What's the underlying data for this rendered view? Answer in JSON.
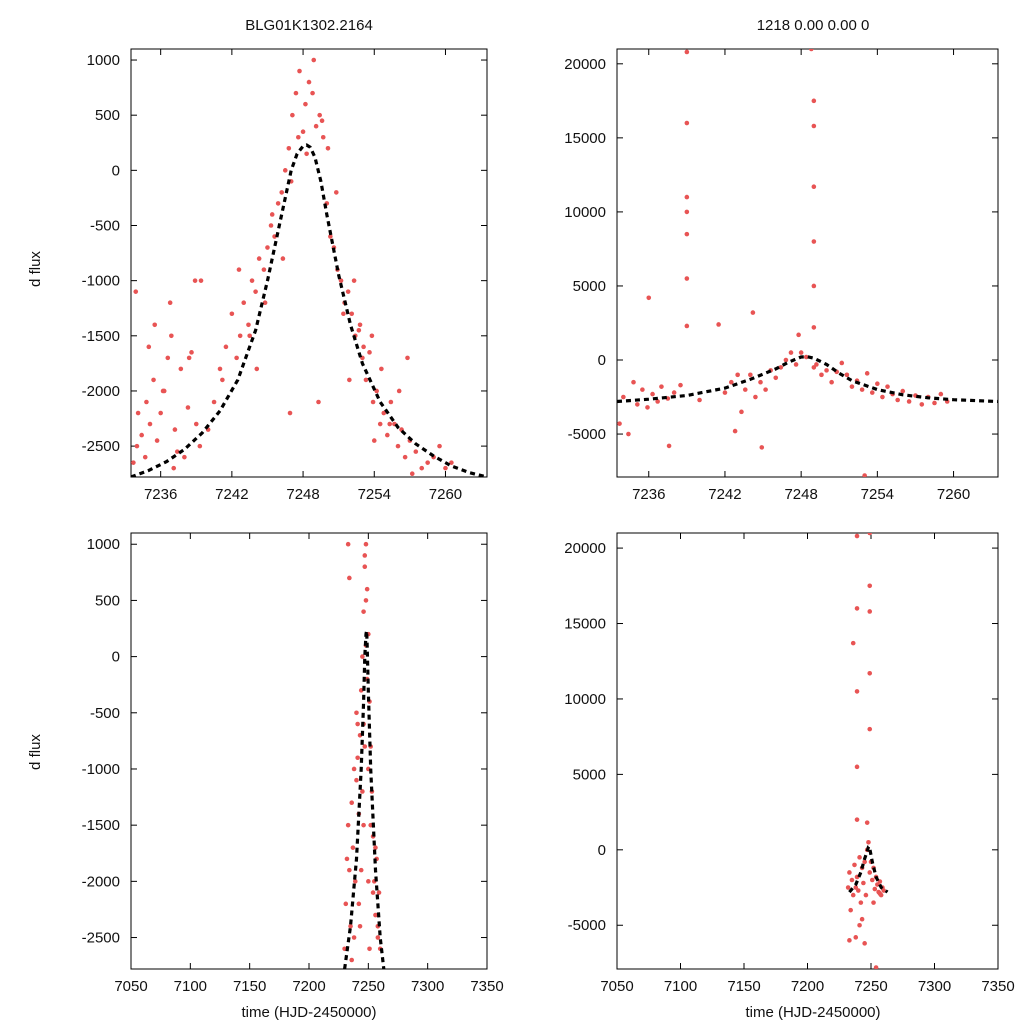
{
  "figure": {
    "left_title": "BLG01K1302.2164",
    "right_title": "1218  0.00  0.00  0",
    "ylabel": "d flux",
    "xlabel": "time (HJD-2450000)"
  },
  "colors": {
    "points": "#e85454",
    "model": "#000000"
  },
  "chart_data": [
    {
      "type": "scatter",
      "title": "BLG01K1302.2164",
      "xlabel": "",
      "ylabel": "d flux",
      "xlim": [
        7233.5,
        7263.5
      ],
      "ylim": [
        -2780,
        1100
      ],
      "xticks": [
        7236,
        7242,
        7248,
        7254,
        7260
      ],
      "yticks": [
        1000,
        500,
        0,
        -500,
        -1000,
        -1500,
        -2000,
        -2500
      ],
      "series": [
        {
          "name": "data",
          "style": "points",
          "x": [
            7233.7,
            7234.0,
            7234.1,
            7234.4,
            7234.7,
            7234.8,
            7235.1,
            7235.4,
            7235.7,
            7236.0,
            7236.3,
            7236.6,
            7236.9,
            7237.2,
            7237.4,
            7237.7,
            7238.0,
            7238.3,
            7238.6,
            7239.0,
            7239.3,
            7240.0,
            7240.5,
            7241.0,
            7241.5,
            7242.0,
            7242.4,
            7242.7,
            7243.0,
            7243.4,
            7243.7,
            7244.0,
            7244.3,
            7244.7,
            7245.0,
            7245.3,
            7245.6,
            7245.9,
            7246.2,
            7246.5,
            7246.8,
            7247.1,
            7247.4,
            7247.7,
            7248.0,
            7248.2,
            7248.5,
            7248.8,
            7249.1,
            7249.4,
            7249.7,
            7250.0,
            7250.3,
            7250.6,
            7250.9,
            7251.2,
            7251.5,
            7251.8,
            7252.1,
            7252.4,
            7252.7,
            7253.0,
            7253.3,
            7253.6,
            7253.9,
            7254.2,
            7254.5,
            7254.8,
            7255.1,
            7255.4,
            7255.7,
            7256.0,
            7256.3,
            7256.6,
            7257.0,
            7257.5,
            7258.0,
            7258.5,
            7259.0,
            7259.5,
            7260.0,
            7260.5,
            7233.9,
            7235.0,
            7236.2,
            7237.1,
            7238.4,
            7239.4,
            7241.2,
            7242.6,
            7243.5,
            7244.8,
            7245.4,
            7246.3,
            7247.0,
            7247.6,
            7248.3,
            7248.9,
            7249.6,
            7250.1,
            7250.8,
            7251.4,
            7252.3,
            7253.1,
            7253.8,
            7254.6,
            7255.3,
            7256.1,
            7257.2,
            7235.5,
            7236.8,
            7238.9,
            7244.1,
            7246.9,
            7249.3,
            7251.9,
            7254.0,
            7256.8,
            7252.8
          ],
          "y": [
            -2650,
            -2500,
            -2200,
            -2400,
            -2600,
            -2100,
            -2300,
            -1900,
            -2450,
            -2200,
            -2000,
            -1700,
            -1500,
            -2350,
            -2550,
            -1800,
            -2600,
            -2150,
            -1650,
            -2300,
            -2500,
            -2350,
            -2100,
            -1800,
            -1600,
            -1300,
            -1700,
            -1500,
            -1200,
            -1400,
            -1000,
            -1100,
            -800,
            -900,
            -700,
            -500,
            -600,
            -300,
            -200,
            0,
            200,
            500,
            700,
            900,
            350,
            600,
            800,
            700,
            400,
            500,
            300,
            -300,
            -600,
            -700,
            -900,
            -1000,
            -1200,
            -1100,
            -1300,
            -1500,
            -1450,
            -1700,
            -1900,
            -1650,
            -2100,
            -2000,
            -2300,
            -2200,
            -2400,
            -2100,
            -2300,
            -2500,
            -2350,
            -2600,
            -2450,
            -2550,
            -2700,
            -2650,
            -2600,
            -2500,
            -2700,
            -2650,
            -1100,
            -1600,
            -2000,
            -2700,
            -1700,
            -1000,
            -1900,
            -900,
            -1500,
            -1200,
            -400,
            -800,
            -100,
            300,
            150,
            1000,
            450,
            200,
            -200,
            -1300,
            -1000,
            -1600,
            -1500,
            -1800,
            -2300,
            -2000,
            -2750,
            -1400,
            -1200,
            -1000,
            -1800,
            -2200,
            -2100,
            -1900,
            -2450,
            -1700,
            -1400
          ],
          "color": "#e85454"
        },
        {
          "name": "model",
          "style": "dashed-line",
          "x": [
            7233.5,
            7235,
            7236.5,
            7238,
            7239.5,
            7241,
            7242.5,
            7244,
            7245,
            7246,
            7247,
            7247.5,
            7248,
            7248.3,
            7248.6,
            7249,
            7249.5,
            7250,
            7251,
            7252,
            7253,
            7254.5,
            7256,
            7257.5,
            7259,
            7260.5,
            7262,
            7263.5
          ],
          "y": [
            -2780,
            -2720,
            -2640,
            -2530,
            -2380,
            -2180,
            -1900,
            -1450,
            -1000,
            -500,
            0,
            150,
            220,
            230,
            210,
            120,
            -100,
            -400,
            -950,
            -1400,
            -1750,
            -2100,
            -2330,
            -2480,
            -2590,
            -2680,
            -2740,
            -2780
          ],
          "color": "#000000"
        }
      ]
    },
    {
      "type": "scatter",
      "title": "1218  0.00  0.00  0",
      "xlabel": "",
      "ylabel": "",
      "xlim": [
        7233.5,
        7263.5
      ],
      "ylim": [
        -7900,
        21000
      ],
      "xticks": [
        7236,
        7242,
        7248,
        7254,
        7260
      ],
      "yticks": [
        20000,
        15000,
        10000,
        5000,
        0,
        -5000
      ],
      "series": [
        {
          "name": "data",
          "style": "points",
          "x": [
            7233.7,
            7234.0,
            7234.4,
            7234.8,
            7235.1,
            7235.5,
            7235.9,
            7236.3,
            7236.7,
            7237.0,
            7237.5,
            7238.0,
            7238.5,
            7239.0,
            7239.0,
            7239.0,
            7239.0,
            7239.0,
            7239.0,
            7239.0,
            7240.0,
            7241.5,
            7242.0,
            7242.5,
            7243.0,
            7243.3,
            7243.6,
            7244.0,
            7244.4,
            7244.8,
            7245.2,
            7245.6,
            7246.0,
            7246.4,
            7246.8,
            7247.2,
            7247.6,
            7248.0,
            7248.4,
            7248.8,
            7249.0,
            7249.0,
            7249.0,
            7249.0,
            7249.0,
            7249.0,
            7249.0,
            7249.2,
            7249.6,
            7250.0,
            7250.4,
            7250.8,
            7251.2,
            7251.6,
            7252.0,
            7252.4,
            7252.8,
            7253.2,
            7253.6,
            7254.0,
            7254.4,
            7254.8,
            7255.2,
            7255.6,
            7256.0,
            7256.5,
            7257.0,
            7257.5,
            7258.0,
            7258.5,
            7259.0,
            7259.5,
            7236.0,
            7237.6,
            7242.8,
            7244.2,
            7244.9,
            7247.8,
            7253.0
          ],
          "y": [
            -4300,
            -2500,
            -5000,
            -1500,
            -3000,
            -2000,
            -3200,
            -2300,
            -2800,
            -1800,
            -2600,
            -2200,
            -1700,
            20800,
            16000,
            11000,
            10000,
            8500,
            5500,
            2300,
            -2700,
            2400,
            -2200,
            -1500,
            -1000,
            -3500,
            -2000,
            -1000,
            -2500,
            -1500,
            -2000,
            -700,
            -1200,
            -500,
            0,
            500,
            -300,
            500,
            200,
            21000,
            17500,
            15800,
            11700,
            8000,
            5000,
            2200,
            -500,
            -300,
            -1000,
            -700,
            -1500,
            -800,
            -200,
            -1000,
            -1800,
            -1400,
            -2000,
            -900,
            -2200,
            -1600,
            -2500,
            -1800,
            -2300,
            -2700,
            -2100,
            -2800,
            -2400,
            -3000,
            -2500,
            -2900,
            -2300,
            -2800,
            4200,
            -5800,
            -4800,
            3200,
            -5900,
            1700,
            -7800
          ],
          "color": "#e85454"
        },
        {
          "name": "model",
          "style": "dashed-line",
          "x": [
            7233.5,
            7236,
            7239,
            7242,
            7244,
            7246,
            7247,
            7248,
            7248.5,
            7249,
            7250,
            7251,
            7252,
            7254,
            7256,
            7258,
            7260,
            7263.5
          ],
          "y": [
            -2800,
            -2650,
            -2400,
            -1900,
            -1300,
            -600,
            -150,
            200,
            220,
            120,
            -300,
            -900,
            -1400,
            -2000,
            -2350,
            -2550,
            -2680,
            -2800
          ],
          "color": "#000000"
        }
      ]
    },
    {
      "type": "scatter",
      "title": "",
      "xlabel": "time (HJD-2450000)",
      "ylabel": "d flux",
      "xlim": [
        7050,
        7350
      ],
      "ylim": [
        -2780,
        1100
      ],
      "xticks": [
        7050,
        7100,
        7150,
        7200,
        7250,
        7300,
        7350
      ],
      "yticks": [
        1000,
        500,
        0,
        -500,
        -1000,
        -1500,
        -2000,
        -2500
      ],
      "series": [
        {
          "name": "data",
          "style": "points",
          "x": [
            7230,
            7231,
            7232,
            7233,
            7234,
            7235,
            7236,
            7237,
            7238,
            7239,
            7240,
            7241,
            7242,
            7243,
            7244,
            7245,
            7246,
            7247,
            7248,
            7249,
            7250,
            7251,
            7252,
            7253,
            7254,
            7255,
            7256,
            7257,
            7258,
            7259,
            7260,
            7233,
            7234,
            7236,
            7238,
            7240,
            7242,
            7244,
            7246,
            7248,
            7250,
            7252,
            7254,
            7256,
            7258,
            7247,
            7248,
            7249,
            7247,
            7246,
            7250,
            7251,
            7245,
            7243,
            7241
          ],
          "y": [
            -2600,
            -2200,
            -1800,
            -1500,
            -1900,
            -2400,
            -1300,
            -1700,
            -2500,
            -2000,
            -1100,
            -900,
            -1400,
            -700,
            -300,
            0,
            400,
            800,
            1000,
            600,
            200,
            -400,
            -800,
            -1200,
            -1600,
            -2000,
            -2300,
            -1800,
            -2400,
            -2100,
            -2600,
            1000,
            700,
            -2700,
            -1000,
            -500,
            -2200,
            -1900,
            -600,
            100,
            -1000,
            -1500,
            -2100,
            -1700,
            -2500,
            900,
            500,
            -200,
            -800,
            -1500,
            -2000,
            -2600,
            -1200,
            -2400,
            -600
          ],
          "color": "#e85454"
        },
        {
          "name": "model",
          "style": "dashed-line",
          "x": [
            7230,
            7235,
            7240,
            7244,
            7246,
            7247,
            7248,
            7248.5,
            7249,
            7250,
            7252,
            7256,
            7260,
            7263
          ],
          "y": [
            -2780,
            -2400,
            -1800,
            -1000,
            -400,
            0,
            200,
            230,
            120,
            -300,
            -1000,
            -1900,
            -2500,
            -2780
          ],
          "color": "#000000"
        }
      ]
    },
    {
      "type": "scatter",
      "title": "",
      "xlabel": "time (HJD-2450000)",
      "ylabel": "",
      "xlim": [
        7050,
        7350
      ],
      "ylim": [
        -7900,
        21000
      ],
      "xticks": [
        7050,
        7100,
        7150,
        7200,
        7250,
        7300,
        7350
      ],
      "yticks": [
        20000,
        15000,
        10000,
        5000,
        0,
        -5000
      ],
      "series": [
        {
          "name": "data",
          "style": "points",
          "x": [
            7232,
            7233,
            7234,
            7235,
            7236,
            7237,
            7238,
            7239,
            7240,
            7241,
            7242,
            7243,
            7244,
            7245,
            7246,
            7247,
            7248,
            7249,
            7250,
            7251,
            7252,
            7253,
            7254,
            7255,
            7256,
            7257,
            7258,
            7259,
            7260,
            7239,
            7239,
            7239,
            7239,
            7239,
            7249,
            7249,
            7249,
            7249,
            7249,
            7236,
            7238,
            7243,
            7245,
            7247,
            7252,
            7254,
            7257,
            7233,
            7241
          ],
          "y": [
            -2500,
            -1500,
            -4000,
            -2000,
            -3000,
            -1000,
            -2500,
            -1800,
            -2700,
            -500,
            -3500,
            -1200,
            -2200,
            -800,
            -3000,
            0,
            500,
            -1500,
            -800,
            -2000,
            -1200,
            -2600,
            -1800,
            -2300,
            -2800,
            -2100,
            -3000,
            -2500,
            -2700,
            20800,
            16000,
            10500,
            5500,
            2000,
            21000,
            17500,
            15800,
            11700,
            8000,
            13700,
            -5800,
            -4600,
            -6200,
            1800,
            -3500,
            -7800,
            -2900,
            -6000,
            -5000
          ],
          "color": "#e85454"
        },
        {
          "name": "model",
          "style": "dashed-line",
          "x": [
            7233,
            7238,
            7242,
            7245,
            7247,
            7248,
            7248.5,
            7249,
            7251,
            7254,
            7258,
            7263
          ],
          "y": [
            -2800,
            -2300,
            -1500,
            -600,
            -100,
            200,
            220,
            100,
            -800,
            -1800,
            -2500,
            -2800
          ],
          "color": "#000000"
        }
      ]
    }
  ]
}
